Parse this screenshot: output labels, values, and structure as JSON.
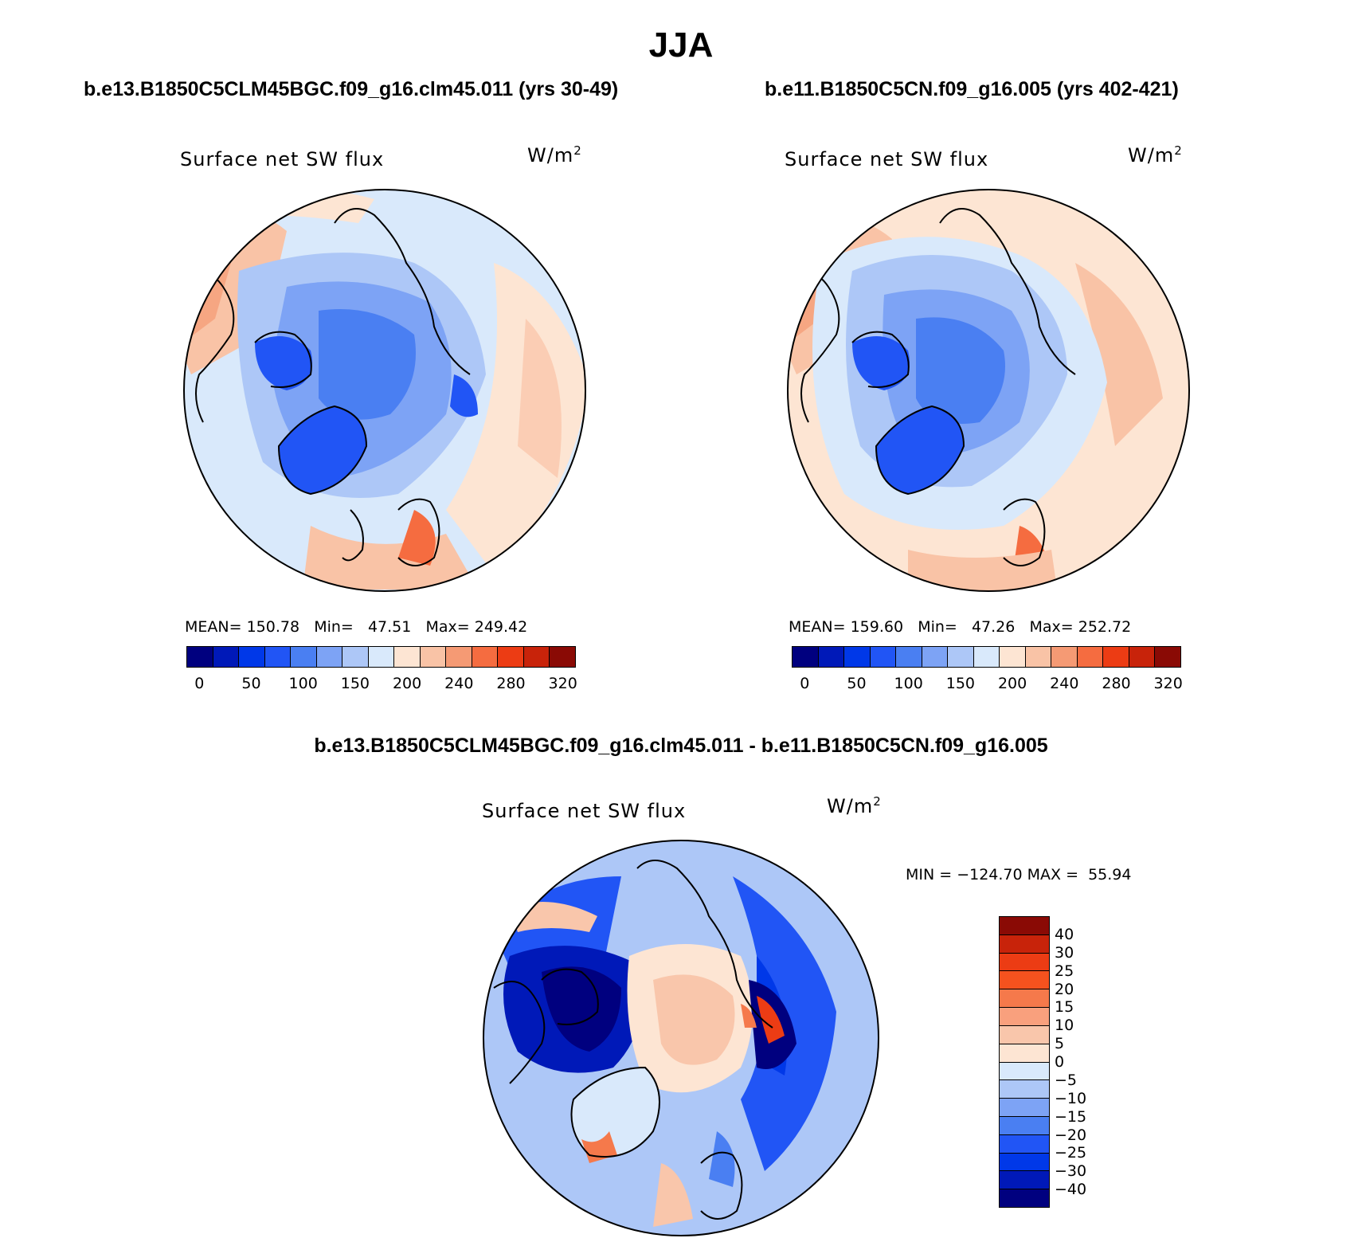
{
  "figure": {
    "title": "JJA",
    "case1_title": "b.e13.B1850C5CLM45BGC.f09_g16.clm45.011 (yrs 30-49)",
    "case2_title": "b.e11.B1850C5CN.f09_g16.005 (yrs 402-421)",
    "diff_title": "b.e13.B1850C5CLM45BGC.f09_g16.clm45.011 - b.e11.B1850C5CN.f09_g16.005"
  },
  "panels": {
    "p1": {
      "variable": "Surface net SW flux",
      "units": "W/m",
      "units_sup": "2",
      "mean_label": "MEAN=",
      "mean": "150.78",
      "min_label": "Min=",
      "min": "47.51",
      "max_label": "Max=",
      "max": "249.42"
    },
    "p2": {
      "variable": "Surface net SW flux",
      "units": "W/m",
      "units_sup": "2",
      "mean_label": "MEAN=",
      "mean": "159.60",
      "min_label": "Min=",
      "min": "47.26",
      "max_label": "Max=",
      "max": "252.72"
    },
    "p3": {
      "variable": "Surface net SW flux",
      "units": "W/m",
      "units_sup": "2",
      "minmax_label": "MIN = −124.70 MAX =  55.94"
    }
  },
  "colorbar_abs": {
    "ticks": [
      "0",
      "50",
      "100",
      "150",
      "200",
      "240",
      "280",
      "320"
    ],
    "colors": [
      "#00007f",
      "#0019b8",
      "#0038e8",
      "#2155f5",
      "#4a7ff2",
      "#7da3f5",
      "#adc7f7",
      "#d9e9fb",
      "#fde5d3",
      "#f9c3a6",
      "#f59a74",
      "#f56c40",
      "#ec3c14",
      "#c8230a",
      "#8a0a05"
    ]
  },
  "colorbar_diff": {
    "ticks": [
      "40",
      "30",
      "25",
      "20",
      "15",
      "10",
      "5",
      "0",
      "−5",
      "−10",
      "−15",
      "−20",
      "−25",
      "−30",
      "−40"
    ],
    "colors": [
      "#8a0a05",
      "#c8230a",
      "#ec3c14",
      "#f5521e",
      "#f5794b",
      "#f9a07d",
      "#f9c6ab",
      "#fde5d3",
      "#d9e9fb",
      "#adc7f7",
      "#7da3f5",
      "#4a7ff2",
      "#2155f5",
      "#0038e8",
      "#0019b8",
      "#00007f"
    ]
  },
  "chart_data": [
    {
      "type": "map",
      "projection": "north polar stereographic",
      "title": "b.e13.B1850C5CLM45BGC.f09_g16.clm45.011 (yrs 30-49)",
      "variable": "Surface net SW flux",
      "units": "W/m2",
      "mean": 150.78,
      "min": 47.51,
      "max": 249.42,
      "contour_levels": [
        0,
        25,
        50,
        75,
        100,
        125,
        150,
        175,
        200,
        220,
        240,
        260,
        280,
        300,
        320
      ]
    },
    {
      "type": "map",
      "projection": "north polar stereographic",
      "title": "b.e11.B1850C5CN.f09_g16.005 (yrs 402-421)",
      "variable": "Surface net SW flux",
      "units": "W/m2",
      "mean": 159.6,
      "min": 47.26,
      "max": 252.72,
      "contour_levels": [
        0,
        25,
        50,
        75,
        100,
        125,
        150,
        175,
        200,
        220,
        240,
        260,
        280,
        300,
        320
      ]
    },
    {
      "type": "map",
      "projection": "north polar stereographic",
      "title": "b.e13.B1850C5CLM45BGC.f09_g16.clm45.011 - b.e11.B1850C5CN.f09_g16.005",
      "variable": "Surface net SW flux",
      "units": "W/m2",
      "min": -124.7,
      "max": 55.94,
      "contour_levels": [
        -40,
        -30,
        -25,
        -20,
        -15,
        -10,
        -5,
        0,
        5,
        10,
        15,
        20,
        25,
        30,
        40
      ]
    }
  ]
}
